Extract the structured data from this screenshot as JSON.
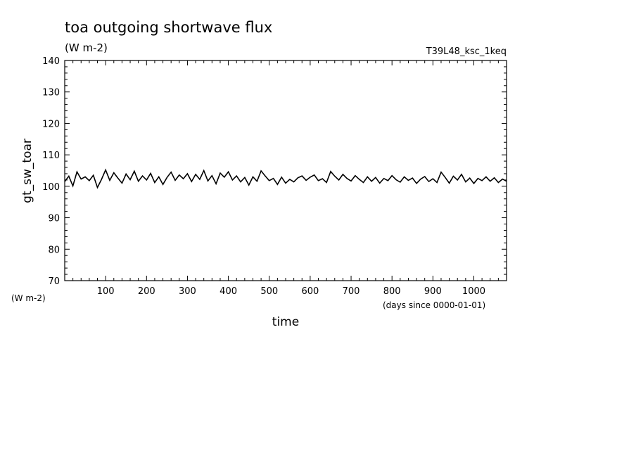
{
  "chart_data": {
    "type": "line",
    "title": "toa outgoing shortwave flux",
    "subtitle": "(W m-2)",
    "run_label": "T39L48_ksc_1keq",
    "xlabel": "time",
    "x_units": "(days since 0000-01-01)",
    "ylabel": "gt_sw_toar",
    "y_units": "(W m-2)",
    "xlim": [
      0,
      1080
    ],
    "ylim": [
      70,
      140
    ],
    "xticks": [
      100,
      200,
      300,
      400,
      500,
      600,
      700,
      800,
      900,
      1000
    ],
    "yticks": [
      70,
      80,
      90,
      100,
      110,
      120,
      130,
      140
    ],
    "grid": false,
    "series": [
      {
        "x": [
          0,
          10,
          20,
          30,
          40,
          50,
          60,
          70,
          80,
          90,
          100,
          110,
          120,
          130,
          140,
          150,
          160,
          170,
          180,
          190,
          200,
          210,
          220,
          230,
          240,
          250,
          260,
          270,
          280,
          290,
          300,
          310,
          320,
          330,
          340,
          350,
          360,
          370,
          380,
          390,
          400,
          410,
          420,
          430,
          440,
          450,
          460,
          470,
          480,
          490,
          500,
          510,
          520,
          530,
          540,
          550,
          560,
          570,
          580,
          590,
          600,
          610,
          620,
          630,
          640,
          650,
          660,
          670,
          680,
          690,
          700,
          710,
          720,
          730,
          740,
          750,
          760,
          770,
          780,
          790,
          800,
          810,
          820,
          830,
          840,
          850,
          860,
          870,
          880,
          890,
          900,
          910,
          920,
          930,
          940,
          950,
          960,
          970,
          980,
          990,
          1000,
          1010,
          1020,
          1030,
          1040,
          1050,
          1060,
          1070,
          1080
        ],
        "values": [
          101.5,
          103.2,
          100.1,
          104.6,
          102.3,
          103.0,
          101.8,
          103.5,
          99.6,
          102.2,
          105.2,
          101.9,
          104.3,
          102.6,
          101.0,
          103.9,
          102.1,
          104.8,
          101.6,
          103.3,
          102.0,
          104.1,
          101.2,
          103.0,
          100.6,
          102.8,
          104.5,
          101.9,
          103.6,
          102.4,
          104.0,
          101.5,
          103.8,
          102.2,
          105.0,
          101.7,
          103.4,
          100.8,
          104.2,
          102.9,
          104.6,
          102.0,
          103.3,
          101.4,
          102.8,
          100.4,
          103.0,
          101.6,
          104.9,
          103.3,
          101.8,
          102.5,
          100.6,
          102.9,
          101.0,
          102.2,
          101.4,
          102.7,
          103.3,
          101.9,
          102.9,
          103.6,
          101.8,
          102.4,
          101.2,
          104.7,
          103.2,
          102.0,
          103.8,
          102.5,
          101.7,
          103.4,
          102.2,
          101.2,
          103.0,
          101.6,
          102.8,
          101.0,
          102.5,
          101.8,
          103.4,
          102.1,
          101.3,
          103.0,
          101.9,
          102.6,
          100.9,
          102.3,
          103.1,
          101.5,
          102.4,
          101.2,
          104.5,
          102.8,
          101.0,
          103.2,
          102.0,
          103.8,
          101.4,
          102.6,
          100.9,
          102.5,
          101.8,
          103.0,
          101.6,
          102.7,
          101.2,
          102.3,
          101.6
        ]
      }
    ],
    "line_color": "#000000"
  }
}
